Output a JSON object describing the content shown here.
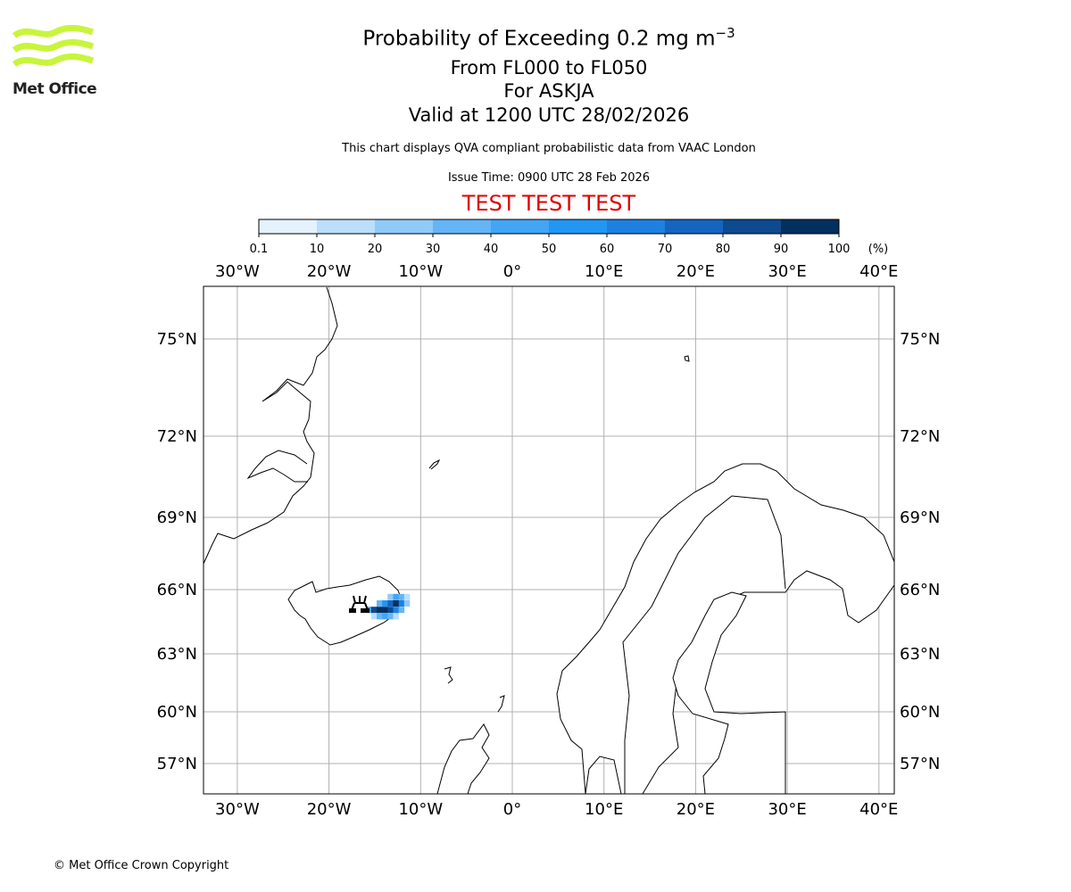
{
  "header": {
    "title": "Probability of Exceeding 0.2 mg m",
    "title_sup": "−3",
    "levels": "From FL000 to FL050",
    "volcano": "For ASKJA",
    "valid": "Valid at 1200 UTC 28/02/2026",
    "info": "This chart displays QVA compliant probabilistic data from VAAC London",
    "issue": "Issue Time: 0900 UTC 28 Feb 2026",
    "test_banner": "TEST TEST TEST"
  },
  "logo": {
    "text": "Met Office"
  },
  "footer": {
    "copyright": "© Met Office Crown Copyright"
  },
  "chart_data": {
    "type": "heatmap",
    "title": "Probability of Exceeding 0.2 mg m−3",
    "colorbar": {
      "ticks": [
        "0.1",
        "10",
        "20",
        "30",
        "40",
        "50",
        "60",
        "70",
        "80",
        "90",
        "100"
      ],
      "unit": "(%)",
      "colors": [
        "#e3f2fd",
        "#bbdefb",
        "#90caf9",
        "#64b5f6",
        "#42a5f5",
        "#2196f3",
        "#1e80e0",
        "#1565c0",
        "#0d4a90",
        "#00305e"
      ]
    },
    "lon_labels": [
      "30°W",
      "20°W",
      "10°W",
      "0°",
      "10°E",
      "20°E",
      "30°E",
      "40°E"
    ],
    "lon_values": [
      -30,
      -20,
      -10,
      0,
      10,
      20,
      30,
      40
    ],
    "lat_labels": [
      "75°N",
      "72°N",
      "69°N",
      "66°N",
      "63°N",
      "60°N",
      "57°N"
    ],
    "lat_values": [
      75,
      72,
      69,
      66,
      63,
      60,
      57
    ],
    "volcano_location": {
      "name": "ASKJA",
      "lon": -16.75,
      "lat": 65.03
    },
    "cells": [
      [
        -13.6,
        65.8,
        20
      ],
      [
        -13.0,
        65.8,
        40
      ],
      [
        -12.4,
        65.8,
        30
      ],
      [
        -11.8,
        65.8,
        10
      ],
      [
        -14.8,
        65.5,
        30
      ],
      [
        -14.2,
        65.5,
        50
      ],
      [
        -13.6,
        65.5,
        70
      ],
      [
        -13.0,
        65.5,
        90
      ],
      [
        -12.4,
        65.5,
        60
      ],
      [
        -11.8,
        65.5,
        20
      ],
      [
        -16.0,
        65.2,
        40
      ],
      [
        -15.4,
        65.2,
        80
      ],
      [
        -14.8,
        65.2,
        90
      ],
      [
        -14.2,
        65.2,
        90
      ],
      [
        -13.6,
        65.2,
        80
      ],
      [
        -13.0,
        65.2,
        60
      ],
      [
        -12.4,
        65.2,
        30
      ],
      [
        -15.4,
        64.9,
        10
      ],
      [
        -14.8,
        64.9,
        30
      ],
      [
        -14.2,
        64.9,
        40
      ],
      [
        -13.6,
        64.9,
        30
      ],
      [
        -13.0,
        64.9,
        10
      ]
    ]
  }
}
